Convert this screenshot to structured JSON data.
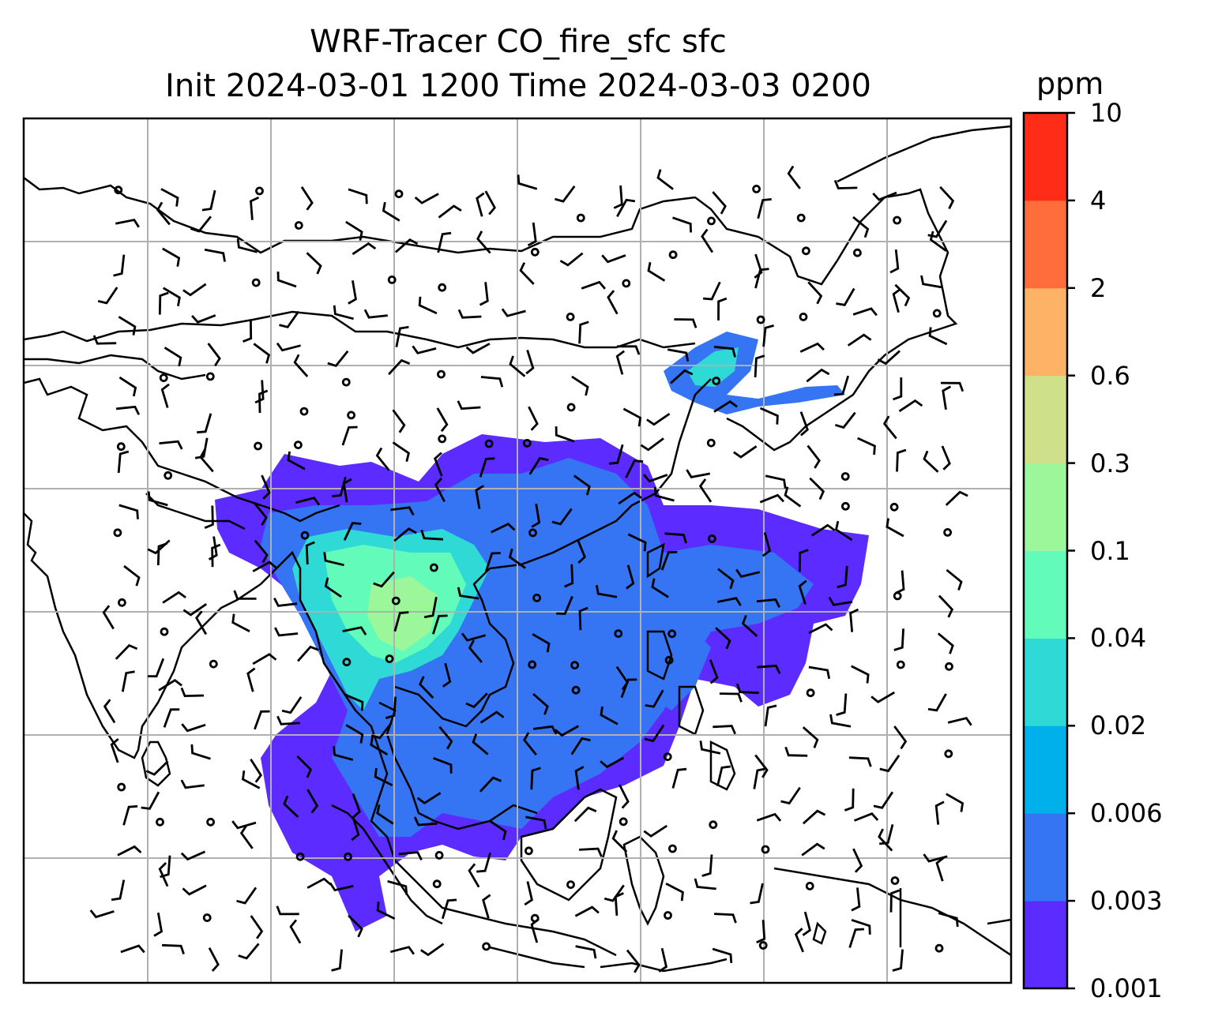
{
  "title": {
    "line1": "WRF-Tracer CO_fire_sfc sfc",
    "line2": "Init 2024-03-01 1200 Time 2024-03-03 0200"
  },
  "colorbar": {
    "unit": "ppm",
    "levels": [
      "0.001",
      "0.003",
      "0.006",
      "0.02",
      "0.04",
      "0.1",
      "0.3",
      "0.6",
      "2",
      "4",
      "10"
    ],
    "colors": [
      "#5b2bff",
      "#3574f2",
      "#00b0ea",
      "#2ed9d6",
      "#63fbba",
      "#9bf79a",
      "#cfe08a",
      "#fdb265",
      "#ff6e3a",
      "#ff2d18"
    ]
  },
  "map": {
    "field_colors": {
      "lowest": "#5b2bff",
      "low": "#3574f2",
      "mid": "#2ed9d6",
      "high": "#63fbba",
      "higher": "#9bf79a"
    },
    "gridlines": true
  }
}
